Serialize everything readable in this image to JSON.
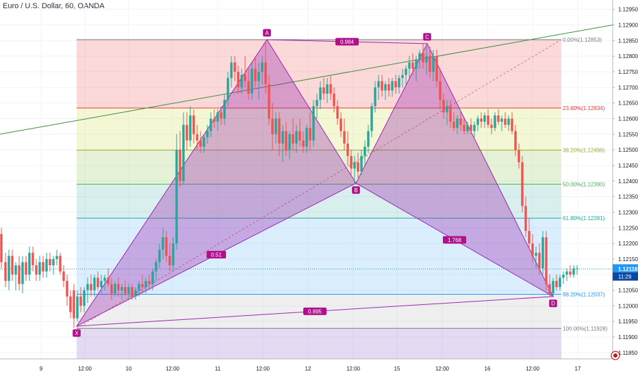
{
  "title": "Euro / U.S. Dollar, 60, OANDA",
  "last_price": "1.12118",
  "countdown": "11:29",
  "chart_data": {
    "type": "candlestick",
    "ylim": [
      1.1183,
      1.1298
    ],
    "yticks": [
      "1.12950",
      "1.12900",
      "1.12850",
      "1.12800",
      "1.12750",
      "1.12700",
      "1.12650",
      "1.12600",
      "1.12550",
      "1.12500",
      "1.12450",
      "1.12400",
      "1.12350",
      "1.12300",
      "1.12250",
      "1.12200",
      "1.12150",
      "1.12100",
      "1.12050",
      "1.12000",
      "1.11950",
      "1.11900",
      "1.11850"
    ],
    "xticks": [
      "9",
      "12:00",
      "10",
      "12:00",
      "11",
      "12:00",
      "12",
      "12:00",
      "15",
      "12:00",
      "16",
      "12:00",
      "17"
    ],
    "fib_levels": [
      {
        "label": "0.00%(1.12853)",
        "value": 1.12853,
        "color": "#787b86"
      },
      {
        "label": "23.60%(1.12634)",
        "value": 1.12634,
        "color": "#e53935"
      },
      {
        "label": "38.20%(1.12499)",
        "value": 1.12499,
        "color": "#9bab2b"
      },
      {
        "label": "50.00%(1.12390)",
        "value": 1.1239,
        "color": "#4caf50"
      },
      {
        "label": "61.80%(1.12281)",
        "value": 1.12281,
        "color": "#26a69a"
      },
      {
        "label": "88.20%(1.12037)",
        "value": 1.12037,
        "color": "#2196f3"
      },
      {
        "label": "100.00%(1.11928)",
        "value": 1.11928,
        "color": "#787b86"
      }
    ],
    "pattern_points": [
      {
        "label": "X",
        "t": 112,
        "price": 1.11935
      },
      {
        "label": "A",
        "t": 390,
        "price": 1.12853
      },
      {
        "label": "B",
        "t": 520,
        "price": 1.12393
      },
      {
        "label": "C",
        "t": 624,
        "price": 1.1284
      },
      {
        "label": "D",
        "t": 808,
        "price": 1.1203
      }
    ],
    "ratios": [
      "0.51",
      "0.984",
      "1.768",
      "0.895"
    ],
    "candles": [
      [
        2,
        1.1223,
        1.1225,
        1.1212,
        1.1214
      ],
      [
        8,
        1.1214,
        1.1217,
        1.1206,
        1.1208
      ],
      [
        13,
        1.1208,
        1.1218,
        1.1205,
        1.1216
      ],
      [
        18,
        1.1216,
        1.1218,
        1.1208,
        1.121
      ],
      [
        23,
        1.121,
        1.1214,
        1.1205,
        1.1213
      ],
      [
        28,
        1.1213,
        1.1216,
        1.1205,
        1.1207
      ],
      [
        33,
        1.1207,
        1.1216,
        1.1204,
        1.1214
      ],
      [
        38,
        1.1214,
        1.1216,
        1.1208,
        1.121
      ],
      [
        43,
        1.121,
        1.1219,
        1.1208,
        1.1217
      ],
      [
        48,
        1.1217,
        1.1219,
        1.1211,
        1.1213
      ],
      [
        53,
        1.1213,
        1.1215,
        1.1208,
        1.121
      ],
      [
        58,
        1.121,
        1.1216,
        1.1208,
        1.1214
      ],
      [
        63,
        1.1214,
        1.1216,
        1.1209,
        1.1211
      ],
      [
        68,
        1.1211,
        1.1217,
        1.1209,
        1.1215
      ],
      [
        73,
        1.1215,
        1.1217,
        1.1211,
        1.1213
      ],
      [
        78,
        1.1213,
        1.1216,
        1.121,
        1.1215
      ],
      [
        83,
        1.1215,
        1.1218,
        1.1213,
        1.1216
      ],
      [
        88,
        1.1216,
        1.1217,
        1.121,
        1.1211
      ],
      [
        93,
        1.1211,
        1.1213,
        1.1206,
        1.1208
      ],
      [
        98,
        1.1208,
        1.121,
        1.12,
        1.1203
      ],
      [
        103,
        1.1203,
        1.1205,
        1.1196,
        1.1198
      ],
      [
        108,
        1.1205,
        1.1207,
        1.1193,
        1.1196
      ],
      [
        113,
        1.1196,
        1.1205,
        1.1195,
        1.1203
      ],
      [
        118,
        1.1203,
        1.1206,
        1.1198,
        1.12
      ],
      [
        123,
        1.12,
        1.1206,
        1.1198,
        1.1205
      ],
      [
        128,
        1.1205,
        1.1209,
        1.1201,
        1.1207
      ],
      [
        133,
        1.1207,
        1.121,
        1.1203,
        1.1205
      ],
      [
        138,
        1.1205,
        1.121,
        1.1203,
        1.1209
      ],
      [
        143,
        1.1209,
        1.1211,
        1.1205,
        1.1206
      ],
      [
        148,
        1.1206,
        1.121,
        1.1204,
        1.1208
      ],
      [
        153,
        1.1208,
        1.121,
        1.1205,
        1.1209
      ],
      [
        158,
        1.1209,
        1.1212,
        1.1206,
        1.1207
      ],
      [
        163,
        1.1207,
        1.1209,
        1.1202,
        1.1204
      ],
      [
        168,
        1.1204,
        1.1208,
        1.1203,
        1.1207
      ],
      [
        173,
        1.1207,
        1.1209,
        1.1203,
        1.1205
      ],
      [
        178,
        1.1205,
        1.1207,
        1.1202,
        1.1206
      ],
      [
        183,
        1.1206,
        1.1208,
        1.1203,
        1.1204
      ],
      [
        188,
        1.1204,
        1.1207,
        1.1202,
        1.1206
      ],
      [
        193,
        1.1206,
        1.1207,
        1.1202,
        1.1203
      ],
      [
        198,
        1.1203,
        1.1206,
        1.1202,
        1.1205
      ],
      [
        203,
        1.1205,
        1.1208,
        1.1203,
        1.1207
      ],
      [
        208,
        1.1207,
        1.121,
        1.1204,
        1.1206
      ],
      [
        213,
        1.1206,
        1.1209,
        1.1204,
        1.1208
      ],
      [
        218,
        1.1208,
        1.121,
        1.1205,
        1.1207
      ],
      [
        223,
        1.1207,
        1.1212,
        1.1205,
        1.1211
      ],
      [
        228,
        1.1211,
        1.1215,
        1.1208,
        1.1214
      ],
      [
        233,
        1.1214,
        1.122,
        1.1212,
        1.1218
      ],
      [
        238,
        1.1218,
        1.1225,
        1.1215,
        1.1222
      ],
      [
        243,
        1.1222,
        1.1224,
        1.1214,
        1.1216
      ],
      [
        248,
        1.1216,
        1.122,
        1.1211,
        1.1213
      ],
      [
        253,
        1.1213,
        1.1222,
        1.1211,
        1.122
      ],
      [
        258,
        1.122,
        1.1255,
        1.1218,
        1.125
      ],
      [
        263,
        1.125,
        1.1256,
        1.1238,
        1.124
      ],
      [
        268,
        1.124,
        1.1262,
        1.1239,
        1.1258
      ],
      [
        273,
        1.1258,
        1.1262,
        1.125,
        1.1253
      ],
      [
        278,
        1.1253,
        1.1264,
        1.1251,
        1.1261
      ],
      [
        283,
        1.1261,
        1.1263,
        1.1252,
        1.1255
      ],
      [
        288,
        1.1255,
        1.1258,
        1.125,
        1.1253
      ],
      [
        293,
        1.1253,
        1.1256,
        1.1249,
        1.1251
      ],
      [
        298,
        1.1251,
        1.1255,
        1.1249,
        1.1254
      ],
      [
        303,
        1.1254,
        1.1258,
        1.1252,
        1.1256
      ],
      [
        308,
        1.1256,
        1.1262,
        1.1254,
        1.126
      ],
      [
        313,
        1.126,
        1.1263,
        1.1257,
        1.1259
      ],
      [
        318,
        1.1259,
        1.1263,
        1.1256,
        1.1262
      ],
      [
        323,
        1.1262,
        1.1264,
        1.1258,
        1.126
      ],
      [
        328,
        1.126,
        1.1268,
        1.1258,
        1.1266
      ],
      [
        333,
        1.1266,
        1.1275,
        1.1264,
        1.1273
      ],
      [
        338,
        1.1273,
        1.128,
        1.127,
        1.1278
      ],
      [
        343,
        1.1278,
        1.128,
        1.1272,
        1.1275
      ],
      [
        348,
        1.1275,
        1.1277,
        1.1268,
        1.127
      ],
      [
        353,
        1.127,
        1.1276,
        1.1268,
        1.1274
      ],
      [
        358,
        1.1274,
        1.128,
        1.127,
        1.1272
      ],
      [
        363,
        1.1272,
        1.1276,
        1.1266,
        1.1268
      ],
      [
        368,
        1.1268,
        1.1278,
        1.1266,
        1.1276
      ],
      [
        373,
        1.1276,
        1.128,
        1.127,
        1.1272
      ],
      [
        378,
        1.1272,
        1.1278,
        1.1266,
        1.1275
      ],
      [
        383,
        1.1275,
        1.128,
        1.1271,
        1.1278
      ],
      [
        388,
        1.1278,
        1.1285,
        1.1268,
        1.1271
      ],
      [
        393,
        1.1271,
        1.1274,
        1.1258,
        1.126
      ],
      [
        398,
        1.126,
        1.1265,
        1.125,
        1.1255
      ],
      [
        403,
        1.1255,
        1.1262,
        1.1252,
        1.126
      ],
      [
        408,
        1.126,
        1.1262,
        1.1248,
        1.1252
      ],
      [
        413,
        1.1252,
        1.1258,
        1.1246,
        1.1256
      ],
      [
        418,
        1.1256,
        1.1259,
        1.1248,
        1.125
      ],
      [
        423,
        1.125,
        1.1256,
        1.1247,
        1.1255
      ],
      [
        428,
        1.1255,
        1.126,
        1.125,
        1.1252
      ],
      [
        433,
        1.1252,
        1.1258,
        1.1249,
        1.1256
      ],
      [
        438,
        1.1256,
        1.126,
        1.1251,
        1.1253
      ],
      [
        443,
        1.1253,
        1.1256,
        1.1249,
        1.1251
      ],
      [
        448,
        1.1251,
        1.1258,
        1.1249,
        1.1257
      ],
      [
        453,
        1.1257,
        1.1262,
        1.125,
        1.1253
      ],
      [
        458,
        1.1253,
        1.1266,
        1.1251,
        1.1264
      ],
      [
        463,
        1.1264,
        1.1268,
        1.126,
        1.1266
      ],
      [
        468,
        1.1266,
        1.1272,
        1.1263,
        1.127
      ],
      [
        473,
        1.127,
        1.1273,
        1.1266,
        1.1268
      ],
      [
        478,
        1.1268,
        1.1273,
        1.1265,
        1.1271
      ],
      [
        483,
        1.1271,
        1.1274,
        1.1266,
        1.1268
      ],
      [
        488,
        1.1268,
        1.127,
        1.1262,
        1.1264
      ],
      [
        493,
        1.1264,
        1.1266,
        1.1258,
        1.126
      ],
      [
        498,
        1.126,
        1.1262,
        1.1254,
        1.1256
      ],
      [
        503,
        1.1256,
        1.126,
        1.125,
        1.1252
      ],
      [
        508,
        1.1252,
        1.1256,
        1.1245,
        1.1248
      ],
      [
        513,
        1.1248,
        1.125,
        1.1242,
        1.1244
      ],
      [
        518,
        1.1244,
        1.1248,
        1.1239,
        1.1246
      ],
      [
        523,
        1.1246,
        1.1249,
        1.1241,
        1.1243
      ],
      [
        528,
        1.1243,
        1.125,
        1.1242,
        1.1248
      ],
      [
        533,
        1.1248,
        1.1253,
        1.1245,
        1.1251
      ],
      [
        538,
        1.1251,
        1.1258,
        1.1249,
        1.1256
      ],
      [
        543,
        1.1256,
        1.1265,
        1.1254,
        1.1264
      ],
      [
        548,
        1.1264,
        1.1272,
        1.1262,
        1.127
      ],
      [
        553,
        1.127,
        1.1274,
        1.1266,
        1.1272
      ],
      [
        558,
        1.1272,
        1.1274,
        1.1267,
        1.1269
      ],
      [
        563,
        1.1269,
        1.1272,
        1.1266,
        1.1271
      ],
      [
        568,
        1.1271,
        1.1273,
        1.1267,
        1.1269
      ],
      [
        573,
        1.1269,
        1.1273,
        1.1267,
        1.1272
      ],
      [
        578,
        1.1272,
        1.1274,
        1.1268,
        1.127
      ],
      [
        583,
        1.127,
        1.1274,
        1.1268,
        1.1273
      ],
      [
        588,
        1.1273,
        1.1276,
        1.127,
        1.1274
      ],
      [
        593,
        1.1274,
        1.1277,
        1.1271,
        1.1276
      ],
      [
        598,
        1.1276,
        1.128,
        1.1273,
        1.1278
      ],
      [
        603,
        1.1278,
        1.1281,
        1.1274,
        1.1276
      ],
      [
        608,
        1.1276,
        1.128,
        1.1272,
        1.1279
      ],
      [
        613,
        1.1279,
        1.1282,
        1.1276,
        1.1281
      ],
      [
        618,
        1.1281,
        1.1284,
        1.1276,
        1.1278
      ],
      [
        623,
        1.1278,
        1.1283,
        1.1274,
        1.128
      ],
      [
        628,
        1.128,
        1.1283,
        1.1273,
        1.1275
      ],
      [
        633,
        1.1275,
        1.1282,
        1.1272,
        1.128
      ],
      [
        638,
        1.128,
        1.1282,
        1.127,
        1.1272
      ],
      [
        643,
        1.1272,
        1.1276,
        1.1263,
        1.1266
      ],
      [
        648,
        1.1266,
        1.1268,
        1.126,
        1.1262
      ],
      [
        653,
        1.1262,
        1.1266,
        1.1258,
        1.1264
      ],
      [
        658,
        1.1264,
        1.1266,
        1.1257,
        1.1259
      ],
      [
        663,
        1.1259,
        1.1262,
        1.1256,
        1.1257
      ],
      [
        668,
        1.1257,
        1.1261,
        1.1255,
        1.126
      ],
      [
        673,
        1.126,
        1.1262,
        1.1256,
        1.1258
      ],
      [
        678,
        1.1258,
        1.126,
        1.1255,
        1.1256
      ],
      [
        683,
        1.1256,
        1.1259,
        1.1255,
        1.1258
      ],
      [
        688,
        1.1258,
        1.126,
        1.1255,
        1.1256
      ],
      [
        693,
        1.1256,
        1.1259,
        1.1254,
        1.1258
      ],
      [
        698,
        1.1258,
        1.1261,
        1.1256,
        1.126
      ],
      [
        703,
        1.126,
        1.1262,
        1.1257,
        1.1259
      ],
      [
        708,
        1.1259,
        1.1262,
        1.1257,
        1.1261
      ],
      [
        713,
        1.1261,
        1.1263,
        1.1257,
        1.1258
      ],
      [
        718,
        1.1258,
        1.126,
        1.1255,
        1.1257
      ],
      [
        723,
        1.1257,
        1.1262,
        1.1256,
        1.1261
      ],
      [
        728,
        1.1261,
        1.1263,
        1.1258,
        1.1259
      ],
      [
        733,
        1.1259,
        1.1261,
        1.1256,
        1.126
      ],
      [
        738,
        1.126,
        1.1262,
        1.1257,
        1.1258
      ],
      [
        743,
        1.1258,
        1.1261,
        1.1256,
        1.126
      ],
      [
        748,
        1.126,
        1.1262,
        1.1255,
        1.1256
      ],
      [
        753,
        1.1256,
        1.1258,
        1.1248,
        1.125
      ],
      [
        758,
        1.125,
        1.1252,
        1.1244,
        1.1246
      ],
      [
        763,
        1.1246,
        1.1248,
        1.123,
        1.1232
      ],
      [
        768,
        1.1232,
        1.1235,
        1.1222,
        1.1224
      ],
      [
        773,
        1.1224,
        1.1228,
        1.1218,
        1.122
      ],
      [
        778,
        1.122,
        1.1223,
        1.1214,
        1.1216
      ],
      [
        783,
        1.1216,
        1.1219,
        1.1212,
        1.1217
      ],
      [
        788,
        1.1217,
        1.122,
        1.121,
        1.1212
      ],
      [
        793,
        1.1212,
        1.1224,
        1.121,
        1.1222
      ],
      [
        798,
        1.1222,
        1.1224,
        1.1205,
        1.1207
      ],
      [
        803,
        1.1207,
        1.121,
        1.1203,
        1.1204
      ],
      [
        808,
        1.1204,
        1.1209,
        1.1203,
        1.1208
      ],
      [
        813,
        1.1208,
        1.121,
        1.1205,
        1.1206
      ],
      [
        818,
        1.1206,
        1.121,
        1.1205,
        1.1209
      ],
      [
        823,
        1.1209,
        1.1211,
        1.1207,
        1.121
      ],
      [
        828,
        1.121,
        1.1212,
        1.1208,
        1.1211
      ],
      [
        833,
        1.1211,
        1.1213,
        1.1209,
        1.121
      ],
      [
        838,
        1.121,
        1.1213,
        1.1209,
        1.1212
      ],
      [
        843,
        1.1212,
        1.1213,
        1.121,
        1.1212
      ]
    ]
  },
  "colors": {
    "up": "#26a69a",
    "down": "#ef5350",
    "pattern": "#9c27b0",
    "label_bg": "#b0108a",
    "trend": "#388e3c",
    "price_tag": "#2196f3",
    "countdown_bg": "#0d47a1"
  }
}
